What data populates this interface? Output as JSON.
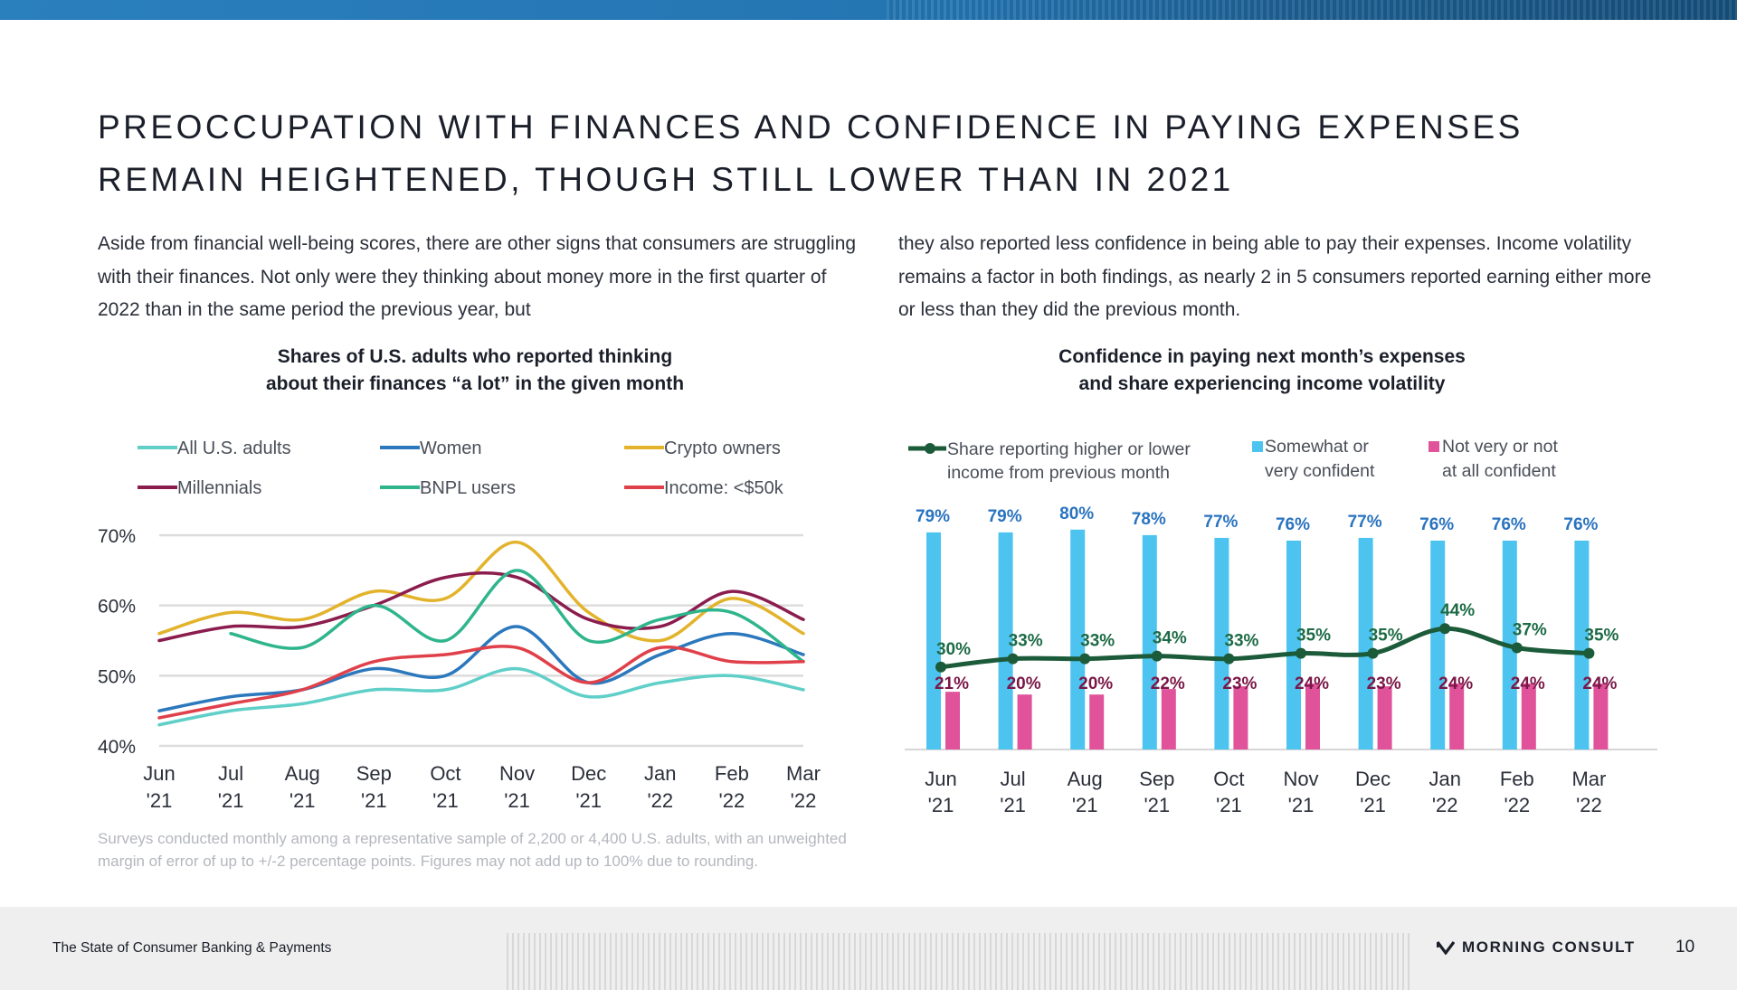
{
  "title": {
    "line1": "PREOCCUPATION WITH FINANCES AND CONFIDENCE IN PAYING EXPENSES",
    "line2": "REMAIN HEIGHTENED, THOUGH STILL LOWER THAN IN 2021"
  },
  "body": {
    "col1": "Aside from financial well-being scores, there are other signs that consumers are struggling with their finances. Not only were they thinking about money more in the first quarter of 2022 than in the same period the previous year, but",
    "col2": "they also reported less confidence in being able to pay their expenses. Income volatility remains a factor in both findings, as nearly 2 in 5 consumers reported earning either more or less than they did the previous month."
  },
  "footnote": "Surveys conducted monthly among a representative sample of 2,200 or 4,400 U.S. adults, with an unweighted margin of error of up to +/-2 percentage points. Figures may not add up to 100% due to rounding.",
  "footer": {
    "report_name": "The State of Consumer Banking & Payments",
    "brand": "MORNING CONSULT",
    "page_number": "10"
  },
  "chart_data": [
    {
      "type": "line",
      "title_line1": "Shares of U.S. adults who reported thinking",
      "title_line2": "about their finances “a lot” in the given month",
      "categories": [
        [
          "Jun",
          "'21"
        ],
        [
          "Jul",
          "'21"
        ],
        [
          "Aug",
          "'21"
        ],
        [
          "Sep",
          "'21"
        ],
        [
          "Oct",
          "'21"
        ],
        [
          "Nov",
          "'21"
        ],
        [
          "Dec",
          "'21"
        ],
        [
          "Jan",
          "'22"
        ],
        [
          "Feb",
          "'22"
        ],
        [
          "Mar",
          "'22"
        ]
      ],
      "ylim": [
        40,
        70
      ],
      "yticks": [
        40,
        50,
        60,
        70
      ],
      "ytick_labels": [
        "40%",
        "50%",
        "60%",
        "70%"
      ],
      "grid": true,
      "legend_position": "top",
      "series": [
        {
          "name": "All U.S. adults",
          "color": "#5fcfc8",
          "values": [
            43,
            45,
            46,
            48,
            48,
            51,
            47,
            49,
            50,
            48
          ]
        },
        {
          "name": "Women",
          "color": "#2b78bd",
          "values": [
            45,
            47,
            48,
            51,
            50,
            57,
            49,
            53,
            56,
            53
          ]
        },
        {
          "name": "Crypto owners",
          "color": "#e2b32b",
          "values": [
            56,
            59,
            58,
            62,
            61,
            69,
            59,
            55,
            61,
            56
          ]
        },
        {
          "name": "Millennials",
          "color": "#8b1d4e",
          "values": [
            55,
            57,
            57,
            60,
            64,
            64,
            58,
            57,
            62,
            58
          ]
        },
        {
          "name": "BNPL users",
          "color": "#2fb58c",
          "values": [
            null,
            56,
            54,
            60,
            55,
            65,
            55,
            58,
            59,
            52
          ]
        },
        {
          "name": "Income: <$50k",
          "color": "#e0404a",
          "values": [
            44,
            46,
            48,
            52,
            53,
            54,
            49,
            54,
            52,
            52
          ]
        }
      ]
    },
    {
      "type": "bar",
      "title_line1": "Confidence in paying next month’s expenses",
      "title_line2": "and share experiencing income volatility",
      "categories": [
        [
          "Jun",
          "'21"
        ],
        [
          "Jul",
          "'21"
        ],
        [
          "Aug",
          "'21"
        ],
        [
          "Sep",
          "'21"
        ],
        [
          "Oct",
          "'21"
        ],
        [
          "Nov",
          "'21"
        ],
        [
          "Dec",
          "'21"
        ],
        [
          "Jan",
          "'22"
        ],
        [
          "Feb",
          "'22"
        ],
        [
          "Mar",
          "'22"
        ]
      ],
      "ylim": [
        0,
        100
      ],
      "legend_position": "top",
      "series": [
        {
          "name_line1": "Somewhat or",
          "name_line2": "very confident",
          "kind": "bar",
          "color": "#4dc3f0",
          "label_color": "#2a73c0",
          "values": [
            79,
            79,
            80,
            78,
            77,
            76,
            77,
            76,
            76,
            76
          ],
          "labels": [
            "79%",
            "79%",
            "80%",
            "78%",
            "77%",
            "76%",
            "77%",
            "76%",
            "76%",
            "76%"
          ]
        },
        {
          "name_line1": "Not very or not",
          "name_line2": "at all confident",
          "kind": "bar",
          "color": "#e0529a",
          "label_color": "#7a1747",
          "values": [
            21,
            20,
            20,
            22,
            23,
            24,
            23,
            24,
            24,
            24
          ],
          "labels": [
            "21%",
            "20%",
            "20%",
            "22%",
            "23%",
            "24%",
            "23%",
            "24%",
            "24%",
            "24%"
          ]
        },
        {
          "name_line1": "Share reporting higher or lower",
          "name_line2": "income from previous month",
          "kind": "line",
          "color": "#1c5b3a",
          "label_color": "#1c6b45",
          "values": [
            30,
            33,
            33,
            34,
            33,
            35,
            35,
            44,
            37,
            35
          ],
          "labels": [
            "30%",
            "33%",
            "33%",
            "34%",
            "33%",
            "35%",
            "35%",
            "44%",
            "37%",
            "35%"
          ]
        }
      ]
    }
  ]
}
